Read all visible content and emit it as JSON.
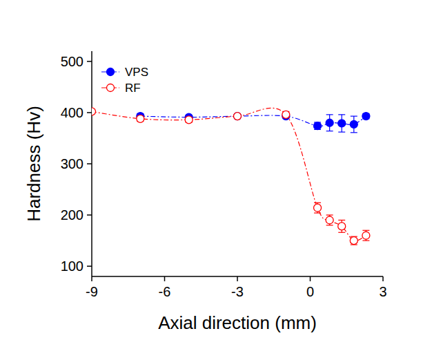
{
  "chart_data": {
    "type": "scatter",
    "x_label": "Axial direction (mm)",
    "y_label": "Hardness (Hv)",
    "x": [
      -9,
      -7,
      -5,
      -3,
      -1,
      0.3,
      0.8,
      1.3,
      1.8,
      2.3
    ],
    "series": [
      {
        "name": "VPS",
        "color": "#0000ff",
        "marker": "filled-circle",
        "line_style": "dashdot",
        "values": [
          null,
          393,
          391,
          393,
          393,
          374,
          380,
          379,
          377,
          393
        ],
        "errors": [
          null,
          5,
          3,
          3,
          4,
          7,
          16,
          17,
          16,
          5
        ]
      },
      {
        "name": "RF",
        "color": "#ff0000",
        "marker": "open-circle",
        "line_style": "dashdot",
        "values": [
          402,
          388,
          386,
          393,
          396,
          214,
          190,
          178,
          150,
          160
        ],
        "errors": [
          3,
          5,
          5,
          4,
          6,
          10,
          10,
          12,
          8,
          10
        ]
      }
    ],
    "xlim": [
      -9,
      3
    ],
    "ylim": [
      80,
      520
    ],
    "xticks": [
      -9,
      -6,
      -3,
      0,
      3
    ],
    "yticks": [
      100,
      200,
      300,
      400,
      500
    ],
    "grid": false,
    "legend": "upper left"
  }
}
